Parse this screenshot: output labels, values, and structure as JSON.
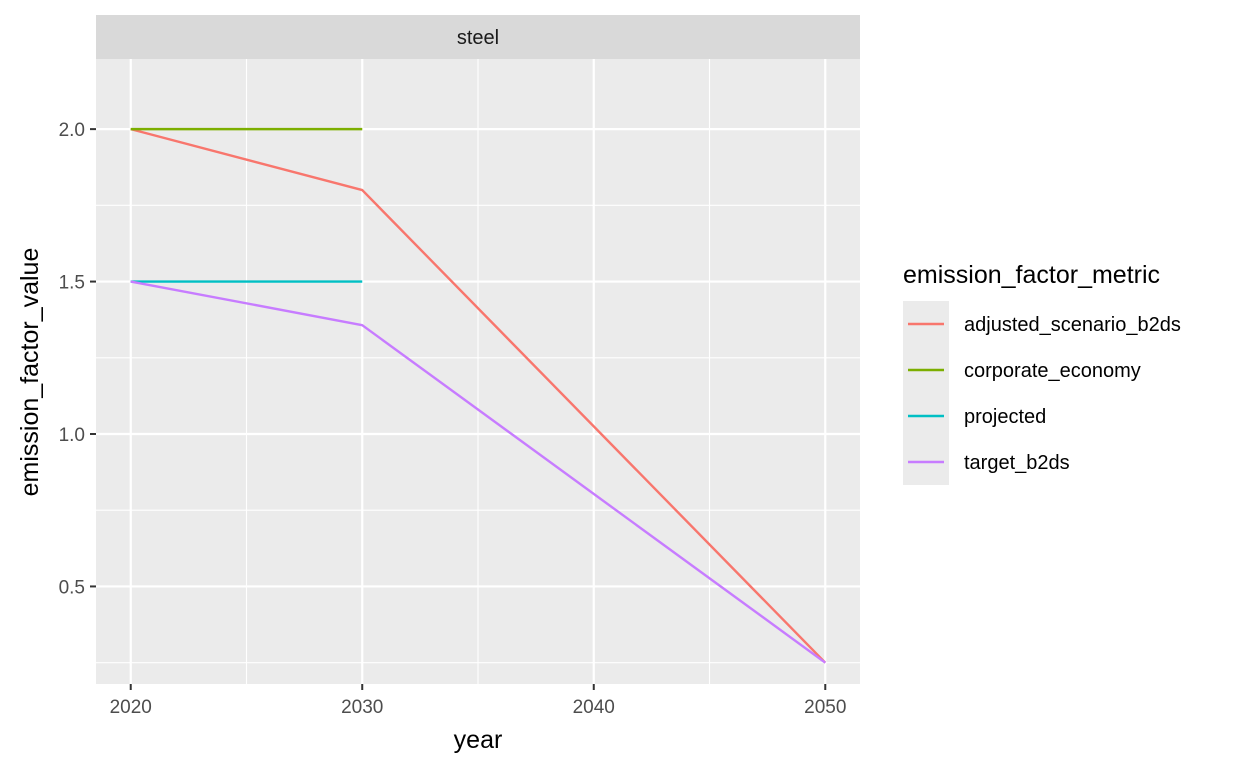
{
  "chart_data": {
    "type": "line",
    "facet_label": "steel",
    "xlabel": "year",
    "ylabel": "emission_factor_value",
    "x_ticks": [
      2020,
      2030,
      2040,
      2050
    ],
    "x_tick_labels": [
      "2020",
      "2030",
      "2040",
      "2050"
    ],
    "y_ticks": [
      0.5,
      1.0,
      1.5,
      2.0
    ],
    "y_tick_labels": [
      "0.5",
      "1.0",
      "1.5",
      "2.0"
    ],
    "xlim": [
      2018.5,
      2051.5
    ],
    "ylim": [
      0.18,
      2.23
    ],
    "grid": true,
    "legend_title": "emission_factor_metric",
    "legend_position": "right",
    "series": [
      {
        "name": "adjusted_scenario_b2ds",
        "color": "#F8766D",
        "x": [
          2020,
          2030,
          2050
        ],
        "y": [
          2.0,
          1.8,
          0.25
        ]
      },
      {
        "name": "corporate_economy",
        "color": "#7CAE00",
        "x": [
          2020,
          2030
        ],
        "y": [
          2.0,
          2.0
        ]
      },
      {
        "name": "projected",
        "color": "#00BFC4",
        "x": [
          2020,
          2030
        ],
        "y": [
          1.5,
          1.5
        ]
      },
      {
        "name": "target_b2ds",
        "color": "#C77CFF",
        "x": [
          2020,
          2030,
          2050
        ],
        "y": [
          1.5,
          1.357,
          0.25
        ]
      }
    ]
  }
}
